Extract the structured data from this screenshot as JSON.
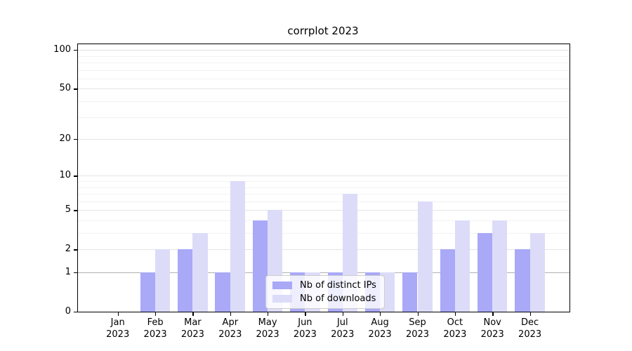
{
  "chart_data": {
    "type": "bar",
    "title": "corrplot 2023",
    "categories": [
      {
        "label": "Jan",
        "sub": "2023"
      },
      {
        "label": "Feb",
        "sub": "2023"
      },
      {
        "label": "Mar",
        "sub": "2023"
      },
      {
        "label": "Apr",
        "sub": "2023"
      },
      {
        "label": "May",
        "sub": "2023"
      },
      {
        "label": "Jun",
        "sub": "2023"
      },
      {
        "label": "Jul",
        "sub": "2023"
      },
      {
        "label": "Aug",
        "sub": "2023"
      },
      {
        "label": "Sep",
        "sub": "2023"
      },
      {
        "label": "Oct",
        "sub": "2023"
      },
      {
        "label": "Nov",
        "sub": "2023"
      },
      {
        "label": "Dec",
        "sub": "2023"
      }
    ],
    "series": [
      {
        "name": "Nb of distinct IPs",
        "color": "#a9a9f8",
        "values": [
          0,
          1,
          2,
          1,
          4,
          1,
          1,
          1,
          1,
          2,
          3,
          2
        ]
      },
      {
        "name": "Nb of downloads",
        "color": "#dcdcf9",
        "values": [
          0,
          2,
          3,
          9,
          5,
          1,
          7,
          1,
          6,
          4,
          4,
          3
        ]
      }
    ],
    "yscale": "log10(1+v)",
    "ylim": [
      0,
      110
    ],
    "y_ticks": [
      0,
      1,
      2,
      5,
      10,
      20,
      50,
      100
    ],
    "y_minor_gridlines": [
      3,
      4,
      6,
      7,
      8,
      9,
      30,
      40,
      60,
      70,
      80,
      90
    ],
    "emphasized_gridline_value": 1,
    "grid": "on",
    "legend_position": "lower center",
    "xlabel": "",
    "ylabel": ""
  }
}
